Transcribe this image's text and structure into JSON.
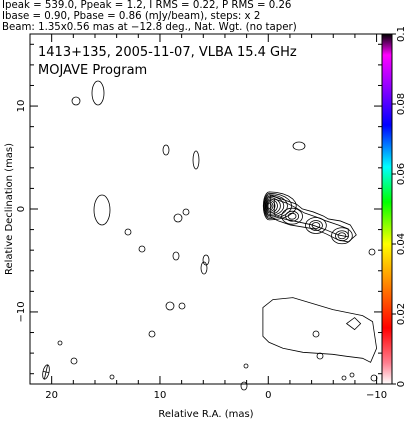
{
  "header": {
    "line1": "Ipeak = 539.0, Ppeak = 1.2, I RMS = 0.22, P RMS = 0.26",
    "line2": "Ibase = 0.90, Pbase = 0.86 (mJy/beam), steps: x 2",
    "line3": "Beam: 1.35x0.56 mas at −12.8 deg., Nat. Wgt. (no taper)"
  },
  "chart_data": {
    "type": "contour",
    "title": "1413+135, 2005-11-07, VLBA 15.4 GHz",
    "subtitle": "MOJAVE Program",
    "xlabel": "Relative R.A. (mas)",
    "ylabel": "Relative Declination (mas)",
    "xlim": [
      22,
      -10.5
    ],
    "ylim": [
      -17,
      17
    ],
    "x_reversed": true,
    "xticks": [
      "20",
      "10",
      "0",
      "−10"
    ],
    "xtick_values": [
      20,
      10,
      0,
      -10
    ],
    "yticks": [
      "10",
      "0",
      "−10"
    ],
    "ytick_values": [
      10,
      0,
      -10
    ],
    "colorbar": {
      "min": 0,
      "max": 0.1,
      "ticks": [
        "0",
        "0.02",
        "0.04",
        "0.06",
        "0.08",
        "0.1"
      ],
      "tick_values": [
        0,
        0.02,
        0.04,
        0.06,
        0.08,
        0.1
      ]
    },
    "core": {
      "x": 0.0,
      "y": 0.2,
      "levels": 9
    },
    "jet_knots": [
      {
        "x": -2.2,
        "y": -0.7
      },
      {
        "x": -4.4,
        "y": -1.6
      },
      {
        "x": -6.8,
        "y": -2.6
      }
    ],
    "diffuse_lobe": {
      "x_range": [
        0.5,
        -10.0
      ],
      "y_range": [
        -9.0,
        -14.5
      ]
    },
    "beam": {
      "major_mas": 1.35,
      "minor_mas": 0.56,
      "pa_deg": -12.8
    }
  }
}
